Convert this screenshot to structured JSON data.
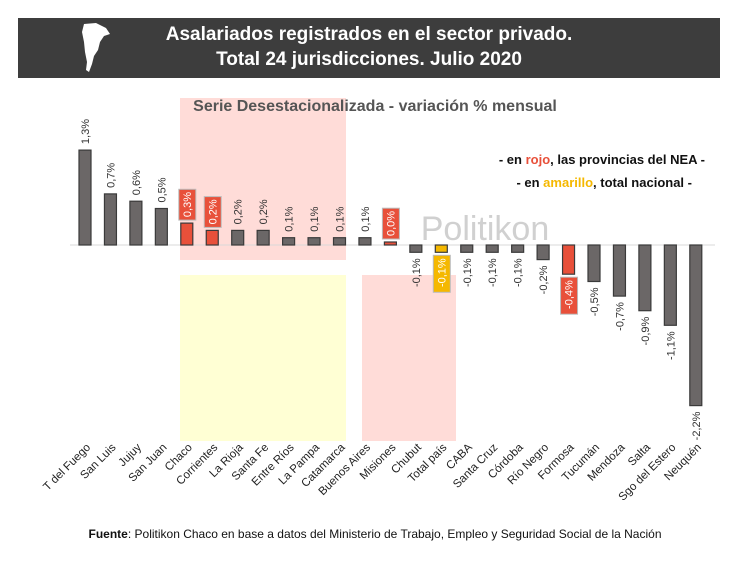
{
  "header": {
    "title_line1": "Asalariados registrados en el sector privado.",
    "title_line2": "Total 24 jurisdicciones. Julio 2020"
  },
  "legend": {
    "line1_prefix": "- en ",
    "line1_color_word": "rojo",
    "line1_suffix": ", las provincias del NEA -",
    "line2_prefix": "- en ",
    "line2_color_word": "amarillo",
    "line2_suffix": ", total nacional -"
  },
  "watermark": "Politikon",
  "source": {
    "label": "Fuente",
    "text": ": Politikon Chaco en base a datos del Ministerio de Trabajo, Empleo y Seguridad Social de la Nación"
  },
  "colors": {
    "default": "#6b6767",
    "nea": "#e8503a",
    "total": "#f5b800",
    "header_bg": "#3d3d3d"
  },
  "chart_data": {
    "type": "bar",
    "subtitle": "Serie Desestacionalizada - variación % mensual",
    "categories": [
      "T del Fuego",
      "San Luis",
      "Jujuy",
      "San Juan",
      "Chaco",
      "Corrientes",
      "La Rioja",
      "Santa Fe",
      "Entre Ríos",
      "La Pampa",
      "Catamarca",
      "Buenos Aires",
      "Misiones",
      "Chubut",
      "Total país",
      "CABA",
      "Santa Cruz",
      "Córdoba",
      "Río Negro",
      "Formosa",
      "Tucumán",
      "Mendoza",
      "Salta",
      "Sgo del Estero",
      "Neuquén"
    ],
    "values": [
      1.3,
      0.7,
      0.6,
      0.5,
      0.3,
      0.2,
      0.2,
      0.2,
      0.1,
      0.1,
      0.1,
      0.1,
      0.0,
      -0.1,
      -0.1,
      -0.1,
      -0.1,
      -0.1,
      -0.2,
      -0.4,
      -0.5,
      -0.7,
      -0.9,
      -1.1,
      -2.2
    ],
    "labels": [
      "1,3%",
      "0,7%",
      "0,6%",
      "0,5%",
      "0,3%",
      "0,2%",
      "0,2%",
      "0,2%",
      "0,1%",
      "0,1%",
      "0,1%",
      "0,1%",
      "0,0%",
      "-0,1%",
      "-0,1%",
      "-0,1%",
      "-0,1%",
      "-0,1%",
      "-0,2%",
      "-0,4%",
      "-0,5%",
      "-0,7%",
      "-0,9%",
      "-1,1%",
      "-2,2%"
    ],
    "groups": [
      "default",
      "default",
      "default",
      "default",
      "nea",
      "nea",
      "default",
      "default",
      "default",
      "default",
      "default",
      "default",
      "nea",
      "default",
      "total",
      "default",
      "default",
      "default",
      "default",
      "nea",
      "default",
      "default",
      "default",
      "default",
      "default"
    ],
    "unit": "%"
  }
}
